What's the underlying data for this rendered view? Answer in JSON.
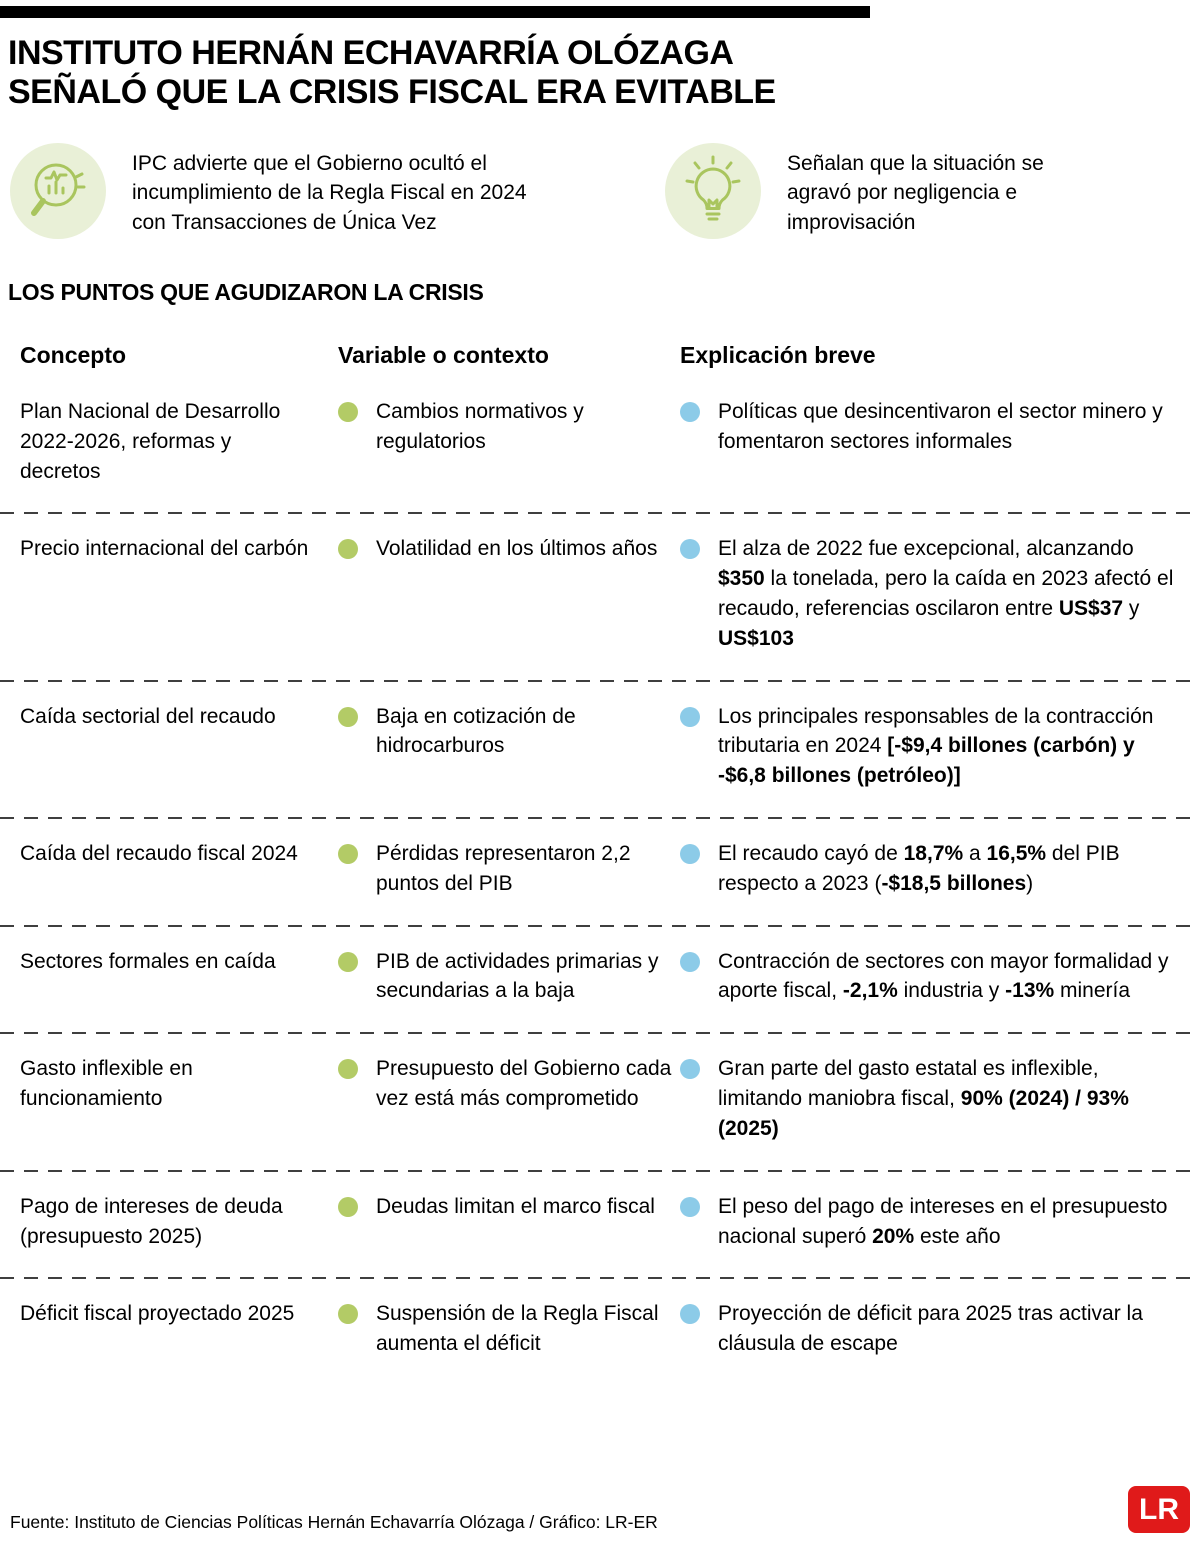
{
  "header": {
    "title_line1": "INSTITUTO HERNÁN ECHAVARRÍA OLÓZAGA",
    "title_line2": "SEÑALÓ QUE LA CRISIS FISCAL ERA EVITABLE"
  },
  "intro": {
    "items": [
      {
        "icon": "magnifier-chart-icon",
        "text": "IPC advierte que el Gobierno ocultó el incumplimiento de la Regla Fiscal en 2024 con Transacciones de Única Vez"
      },
      {
        "icon": "lightbulb-icon",
        "text": "Señalan que la situación se agravó por negligencia e improvisación"
      }
    ]
  },
  "section_title": "LOS PUNTOS QUE AGUDIZARON LA CRISIS",
  "table": {
    "columns": [
      "Concepto",
      "Variable o contexto",
      "Explicación breve"
    ],
    "rows": [
      {
        "concepto": "Plan Nacional de Desarrollo 2022-2026, reformas y decretos",
        "variable": "Cambios normativos y regulatorios",
        "explicacion": [
          {
            "text": "Políticas que desincentivaron el sector minero y fomentaron sectores informales",
            "bold": false
          }
        ]
      },
      {
        "concepto": "Precio internacional del carbón",
        "variable": "Volatilidad en los últimos años",
        "explicacion": [
          {
            "text": "El alza de 2022 fue excepcional, alcanzando ",
            "bold": false
          },
          {
            "text": "$350",
            "bold": true
          },
          {
            "text": " la tonelada, pero la caída en 2023 afectó el recaudo, referencias oscilaron entre ",
            "bold": false
          },
          {
            "text": "US$37",
            "bold": true
          },
          {
            "text": " y ",
            "bold": false
          },
          {
            "text": "US$103",
            "bold": true
          }
        ]
      },
      {
        "concepto": "Caída sectorial del recaudo",
        "variable": "Baja en cotización de hidrocarburos",
        "explicacion": [
          {
            "text": "Los principales responsables de la contracción tributaria en 2024 ",
            "bold": false
          },
          {
            "text": "[-$9,4 billones (carbón) y -$6,8 billones (petróleo)]",
            "bold": true
          }
        ]
      },
      {
        "concepto": "Caída del recaudo fiscal 2024",
        "variable": "Pérdidas representaron 2,2 puntos del PIB",
        "explicacion": [
          {
            "text": "El recaudo cayó de ",
            "bold": false
          },
          {
            "text": "18,7%",
            "bold": true
          },
          {
            "text": " a ",
            "bold": false
          },
          {
            "text": "16,5%",
            "bold": true
          },
          {
            "text": " del PIB respecto a 2023 (",
            "bold": false
          },
          {
            "text": "-$18,5 billones",
            "bold": true
          },
          {
            "text": ")",
            "bold": false
          }
        ]
      },
      {
        "concepto": "Sectores formales en caída",
        "variable": "PIB de actividades primarias y secundarias a la baja",
        "explicacion": [
          {
            "text": "Contracción de sectores con mayor formalidad y aporte fiscal, ",
            "bold": false
          },
          {
            "text": "-2,1%",
            "bold": true
          },
          {
            "text": " industria y ",
            "bold": false
          },
          {
            "text": "-13%",
            "bold": true
          },
          {
            "text": " minería",
            "bold": false
          }
        ]
      },
      {
        "concepto": "Gasto inflexible en funcionamiento",
        "variable": "Presupuesto del Gobierno cada vez está más comprometido",
        "explicacion": [
          {
            "text": "Gran parte del gasto estatal es inflexible, limitando maniobra fiscal, ",
            "bold": false
          },
          {
            "text": "90% (2024) / 93% (2025)",
            "bold": true
          }
        ]
      },
      {
        "concepto": "Pago de intereses de deuda (presupuesto 2025)",
        "variable": "Deudas limitan el marco fiscal",
        "explicacion": [
          {
            "text": "El peso del pago de intereses en el presupuesto nacional superó ",
            "bold": false
          },
          {
            "text": "20%",
            "bold": true
          },
          {
            "text": " este año",
            "bold": false
          }
        ]
      },
      {
        "concepto": "Déficit fiscal proyectado 2025",
        "variable": "Suspensión de la Regla Fiscal aumenta el déficit",
        "explicacion": [
          {
            "text": "Proyección de déficit para 2025 tras activar la cláusula de escape",
            "bold": false
          }
        ]
      }
    ]
  },
  "chart_data": {
    "type": "table",
    "title": "LOS PUNTOS QUE AGUDIZARON LA CRISIS",
    "columns": [
      "Concepto",
      "Variable o contexto",
      "Explicación breve"
    ],
    "rows": [
      [
        "Plan Nacional de Desarrollo 2022-2026, reformas y decretos",
        "Cambios normativos y regulatorios",
        "Políticas que desincentivaron el sector minero y fomentaron sectores informales"
      ],
      [
        "Precio internacional del carbón",
        "Volatilidad en los últimos años",
        "El alza de 2022 fue excepcional, alcanzando $350 la tonelada, pero la caída en 2023 afectó el recaudo, referencias oscilaron entre US$37 y US$103"
      ],
      [
        "Caída sectorial del recaudo",
        "Baja en cotización de hidrocarburos",
        "Los principales responsables de la contracción tributaria en 2024 [-$9,4 billones (carbón) y -$6,8 billones (petróleo)]"
      ],
      [
        "Caída del recaudo fiscal 2024",
        "Pérdidas representaron 2,2 puntos del PIB",
        "El recaudo cayó de 18,7% a 16,5% del PIB respecto a 2023 (-$18,5 billones)"
      ],
      [
        "Sectores formales en caída",
        "PIB de actividades primarias y secundarias a la baja",
        "Contracción de sectores con mayor formalidad y aporte fiscal, -2,1% industria y -13% minería"
      ],
      [
        "Gasto inflexible en funcionamiento",
        "Presupuesto del Gobierno cada vez está más comprometido",
        "Gran parte del gasto estatal es inflexible, limitando maniobra fiscal, 90% (2024) / 93% (2025)"
      ],
      [
        "Pago de intereses de deuda (presupuesto 2025)",
        "Deudas limitan el marco fiscal",
        "El peso del pago de intereses en el presupuesto nacional superó 20% este año"
      ],
      [
        "Déficit fiscal proyectado 2025",
        "Suspensión de la Regla Fiscal aumenta el déficit",
        "Proyección de déficit para 2025 tras activar la cláusula de escape"
      ]
    ]
  },
  "footer": {
    "source": "Fuente: Instituto de Ciencias Políticas Hernán Echavarría Olózaga / Gráfico: LR-ER",
    "logo_text": "LR"
  },
  "colors": {
    "green_bullet": "#b3cb66",
    "blue_bullet": "#8ccbe8",
    "icon_bg": "#e9f0d7",
    "icon_stroke": "#a9c55e",
    "logo_red": "#e01a1a",
    "dash_color": "#3f3f3f"
  }
}
